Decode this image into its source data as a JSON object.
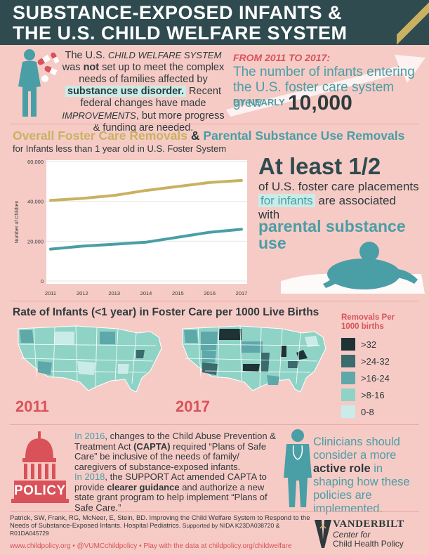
{
  "header": {
    "line1": "SUBSTANCE-EXPOSED INFANTS &",
    "line2": "THE U.S. CHILD WELFARE SYSTEM"
  },
  "intro": {
    "p1": "The U.S. ",
    "p1_em": "CHILD WELFARE SYSTEM",
    "p1b": " was ",
    "p1_not": "not",
    "p1c": " set up to meet the complex needs of families affected by ",
    "p1_hl": "substance use disorder.",
    "p2a": "Recent federal changes have made ",
    "p2_em": "IMPROVEMENTS",
    "p2b": ", but more progress & funding are needed."
  },
  "stat": {
    "from": "FROM 2011 TO 2017:",
    "main": "The number of infants entering the U.S. foster care system grew",
    "by": "BY NEARLY",
    "num": "10,000"
  },
  "chart_title": {
    "a": "Overall Foster Care Removals",
    "amp": " & ",
    "b": "Parental Substance Use Removals",
    "sub": "for Infants less than 1 year old in U.S. Foster System"
  },
  "chart_data": {
    "type": "line",
    "categories": [
      "2011",
      "2012",
      "2013",
      "2014",
      "2015",
      "2016",
      "2017"
    ],
    "ylabel": "Number of Children",
    "ylim": [
      0,
      60000
    ],
    "yticks": [
      "0",
      "20,000",
      "40,000",
      "60,000"
    ],
    "series": [
      {
        "name": "Overall Foster Care Removals",
        "color": "#c8b261",
        "values": [
          40500,
          41500,
          43000,
          45500,
          47500,
          49500,
          50500
        ]
      },
      {
        "name": "Parental Substance Use Removals",
        "color": "#4a9ea6",
        "values": [
          16000,
          17500,
          18500,
          19500,
          22000,
          24500,
          26000
        ]
      }
    ]
  },
  "half": {
    "a": "At least 1/2",
    "b1": "of U.S. foster care placements ",
    "b_hl": "for infants",
    "b2": " are associated with",
    "c": "parental substance use"
  },
  "rate": {
    "title": "Rate of Infants (<1 year) in Foster Care per 1000 Live Births",
    "year1": "2011",
    "year2": "2017"
  },
  "legend": {
    "title": "Removals Per 1000 births",
    "items": [
      {
        "label": ">32",
        "color": "#1f3336"
      },
      {
        "label": ">24-32",
        "color": "#3a6b6d"
      },
      {
        "label": ">16-24",
        "color": "#5ea8aa"
      },
      {
        "label": ">8-16",
        "color": "#8fd3c6"
      },
      {
        "label": "0-8",
        "color": "#c9ece8"
      }
    ]
  },
  "policy": {
    "label": "POLICY",
    "p1_year": "In 2016",
    "p1a": ", changes to the Child Abuse Prevention & Treatment Act ",
    "p1_b": "(CAPTA)",
    "p1b": " required “Plans of Safe Care” be inclusive of the needs of family/ caregivers of substance-exposed infants.",
    "p2_year": "In 2018",
    "p2a": ", the SUPPORT Act amended CAPTA to provide ",
    "p2_b": "clearer guidance",
    "p2b": " and authorize a new state grant program to help implement “Plans of Safe Care.”"
  },
  "clinician": {
    "a": "Clinicians should consider a more ",
    "b": "active role",
    "c": " in shaping how these policies are implemented."
  },
  "footer": {
    "cite": "Patrick, SW, Frank, RG, McNeer, E, Stein, BD. Improving the Child Welfare System to Respond to the Needs of Substance-Exposed Infants. Hospital Pediatrics.",
    "support": " Supported by NIDA K23DA038720 & R01DA045729",
    "link1": "www.childpolicy.org",
    "sep": " • ",
    "link2": "@VUMCchildpolicy",
    "link3": "Play with the data at childpolicy.org/childwelfare"
  },
  "vandy": {
    "name": "VANDERBILT",
    "center1": "Center for",
    "center2": "Child Health Policy"
  }
}
